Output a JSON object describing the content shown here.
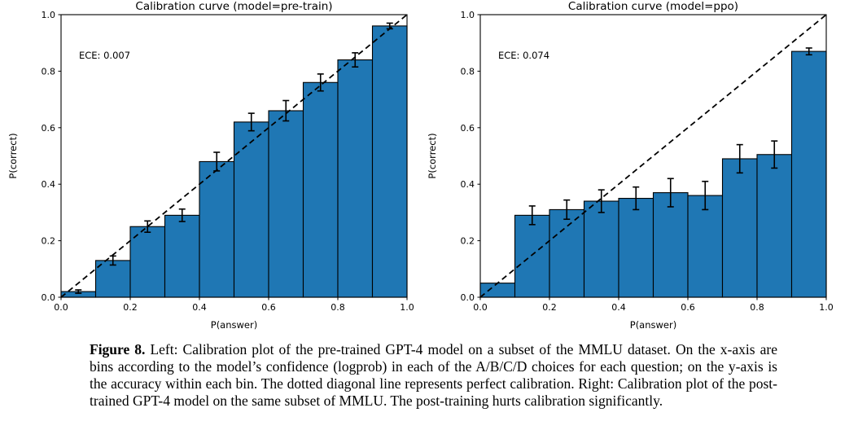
{
  "figure": {
    "background": "#ffffff"
  },
  "caption": {
    "label": "Figure 8.",
    "text": " Left: Calibration plot of the pre-trained GPT-4 model on a subset of the MMLU dataset. On the x-axis are bins according to the model’s confidence (logprob) in each of the A/B/C/D choices for each question; on the y-axis is the accuracy within each bin. The dotted diagonal line represents perfect calibration. Right: Calibration plot of the post-trained GPT-4 model on the same subset of MMLU. The post-training hurts calibration significantly."
  },
  "chart_data": [
    {
      "type": "bar",
      "title": "Calibration curve (model=pre-train)",
      "annotation": "ECE: 0.007",
      "xlabel": "P(answer)",
      "ylabel": "P(correct)",
      "xlim": [
        0.0,
        1.0
      ],
      "ylim": [
        0.0,
        1.0
      ],
      "x_ticks": [
        0.0,
        0.2,
        0.4,
        0.6,
        0.8,
        1.0
      ],
      "y_ticks": [
        0.0,
        0.2,
        0.4,
        0.6,
        0.8,
        1.0
      ],
      "grid": false,
      "bin_edges": [
        0.0,
        0.1,
        0.2,
        0.3,
        0.4,
        0.5,
        0.6,
        0.7,
        0.8,
        0.9,
        1.0
      ],
      "values": [
        0.02,
        0.13,
        0.25,
        0.29,
        0.48,
        0.62,
        0.66,
        0.76,
        0.84,
        0.96
      ],
      "errors": [
        0.006,
        0.016,
        0.02,
        0.022,
        0.033,
        0.031,
        0.036,
        0.03,
        0.025,
        0.01
      ],
      "bar_color": "#1f77b4",
      "bar_edge_color": "#000000",
      "diagonal": {
        "from": [
          0.0,
          0.0
        ],
        "to": [
          1.0,
          1.0
        ],
        "style": "dashed",
        "color": "#000000"
      }
    },
    {
      "type": "bar",
      "title": "Calibration curve (model=ppo)",
      "annotation": "ECE: 0.074",
      "xlabel": "P(answer)",
      "ylabel": "P(correct)",
      "xlim": [
        0.0,
        1.0
      ],
      "ylim": [
        0.0,
        1.0
      ],
      "x_ticks": [
        0.0,
        0.2,
        0.4,
        0.6,
        0.8,
        1.0
      ],
      "y_ticks": [
        0.0,
        0.2,
        0.4,
        0.6,
        0.8,
        1.0
      ],
      "grid": false,
      "bin_edges": [
        0.0,
        0.1,
        0.2,
        0.3,
        0.4,
        0.5,
        0.6,
        0.7,
        0.8,
        0.9,
        1.0
      ],
      "values": [
        0.05,
        0.29,
        0.31,
        0.34,
        0.35,
        0.37,
        0.36,
        0.49,
        0.505,
        0.87
      ],
      "errors": [
        0.0,
        0.033,
        0.034,
        0.04,
        0.04,
        0.05,
        0.05,
        0.05,
        0.048,
        0.012
      ],
      "bar_color": "#1f77b4",
      "bar_edge_color": "#000000",
      "diagonal": {
        "from": [
          0.0,
          0.0
        ],
        "to": [
          1.0,
          1.0
        ],
        "style": "dashed",
        "color": "#000000"
      }
    }
  ]
}
